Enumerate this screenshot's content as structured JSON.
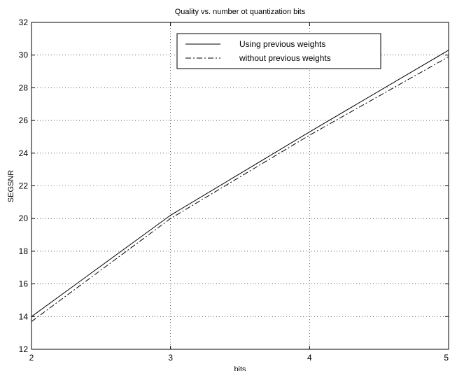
{
  "chart_data": {
    "type": "line",
    "title": "Quality vs. number ot quantization bits",
    "xlabel": "bits",
    "ylabel": "SEGSNR",
    "x": [
      2,
      3,
      4,
      5
    ],
    "xlim": [
      2,
      5
    ],
    "ylim": [
      12,
      32
    ],
    "xticks": [
      "2",
      "3",
      "4",
      "5"
    ],
    "yticks": [
      "12",
      "14",
      "16",
      "18",
      "20",
      "22",
      "24",
      "26",
      "28",
      "30",
      "32"
    ],
    "grid": true,
    "legend_position": "top-right",
    "series": [
      {
        "name": "Using previous weights",
        "values": [
          14.0,
          20.2,
          25.3,
          30.3
        ],
        "color": "#000000",
        "style": "solid"
      },
      {
        "name": "without previous weights",
        "values": [
          13.7,
          20.0,
          25.1,
          29.9
        ],
        "color": "#000000",
        "style": "dashdot"
      }
    ]
  }
}
